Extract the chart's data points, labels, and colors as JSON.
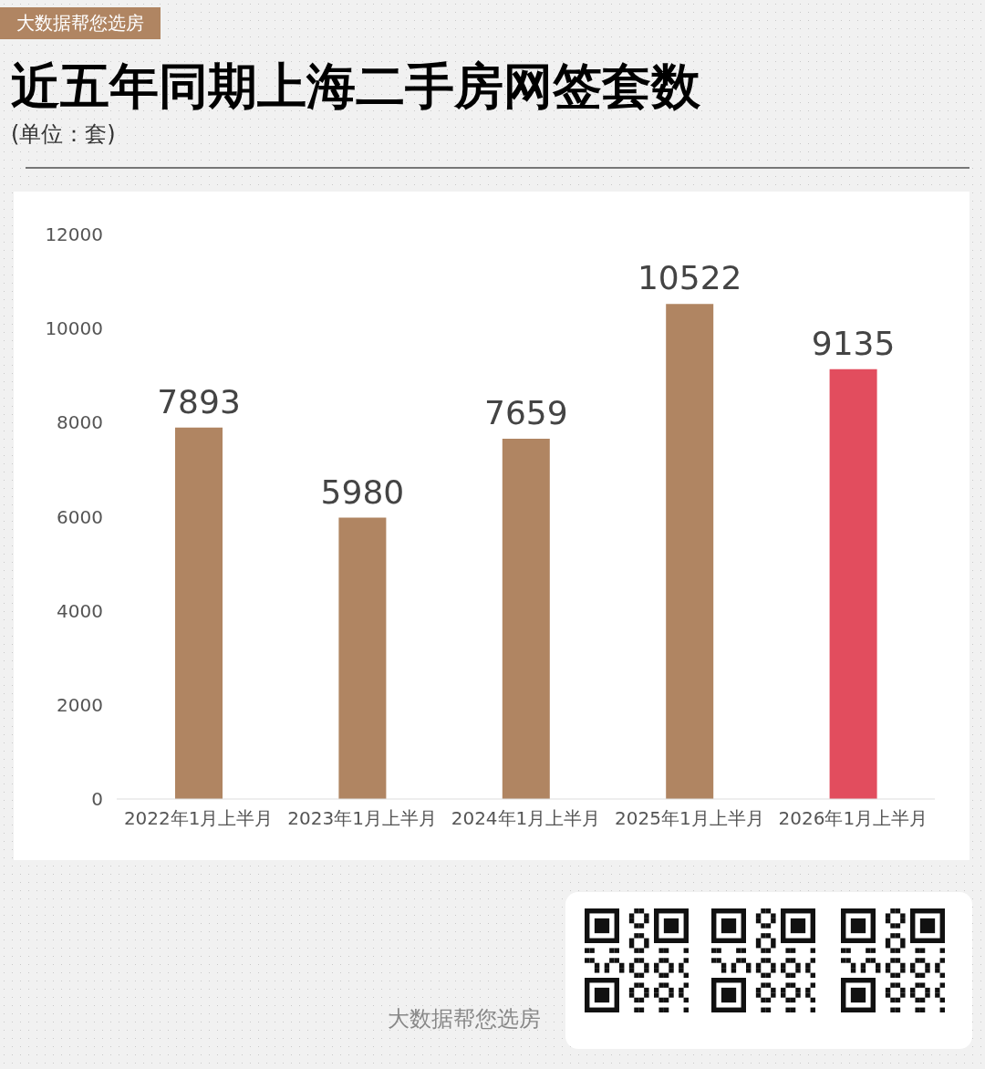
{
  "chart_data": {
    "type": "bar",
    "title": "近五年同期上海二手房网签套数",
    "subtitle": "(单位：套)",
    "categories": [
      "2022年1月上半月",
      "2023年1月上半月",
      "2024年1月上半月",
      "2025年1月上半月",
      "2026年1月上半月"
    ],
    "values": [
      7893,
      5980,
      7659,
      10522,
      9135
    ],
    "colors": [
      "#b08562",
      "#b08562",
      "#b08562",
      "#b08562",
      "#e24d5e"
    ],
    "ylim": [
      0,
      12000
    ],
    "yticks": [
      0,
      2000,
      4000,
      6000,
      8000,
      10000,
      12000
    ],
    "data_labels": true,
    "annotations": [
      "大数据帮您选房",
      "大数据帮您选房"
    ]
  }
}
